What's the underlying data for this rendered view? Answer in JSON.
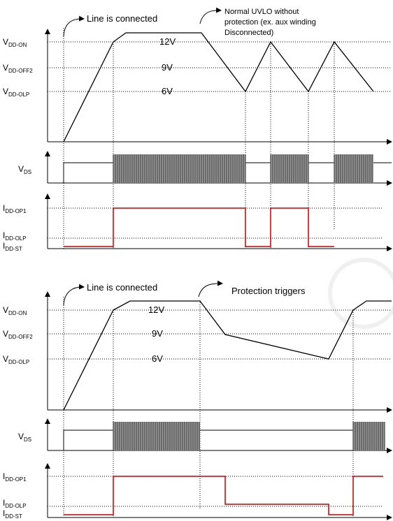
{
  "top_panel": {
    "annotation_line": "Line is connected",
    "annotation_uvlo_lines": [
      "Normal UVLO without",
      "protection (ex. aux winding",
      "Disconnected)"
    ],
    "vdd_labels": [
      {
        "main": "V",
        "sub": "DD-ON"
      },
      {
        "main": "V",
        "sub": "DD-OFF2"
      },
      {
        "main": "V",
        "sub": "DD-OLP"
      }
    ],
    "voltages": [
      "12V",
      "9V",
      "6V"
    ],
    "vds_label": {
      "main": "V",
      "sub": "DS"
    },
    "idd_labels": [
      {
        "main": "I",
        "sub": "DD-OP1"
      },
      {
        "main": "I",
        "sub": "DD-OLP"
      },
      {
        "main": "I",
        "sub": "DD-ST"
      }
    ]
  },
  "bottom_panel": {
    "annotation_line": "Line is connected",
    "annotation_protection": "Protection triggers",
    "vdd_labels": [
      {
        "main": "V",
        "sub": "DD-ON"
      },
      {
        "main": "V",
        "sub": "DD-OFF2"
      },
      {
        "main": "V",
        "sub": "DD-OLP"
      }
    ],
    "voltages": [
      "12V",
      "9V",
      "6V"
    ],
    "vds_label": {
      "main": "V",
      "sub": "DS"
    },
    "idd_labels": [
      {
        "main": "I",
        "sub": "DD-OP1"
      },
      {
        "main": "I",
        "sub": "DD-OLP"
      },
      {
        "main": "I",
        "sub": "DD-ST"
      }
    ]
  },
  "colors": {
    "trace": "#000000",
    "current": "#cc0000",
    "switching": "#555555"
  }
}
